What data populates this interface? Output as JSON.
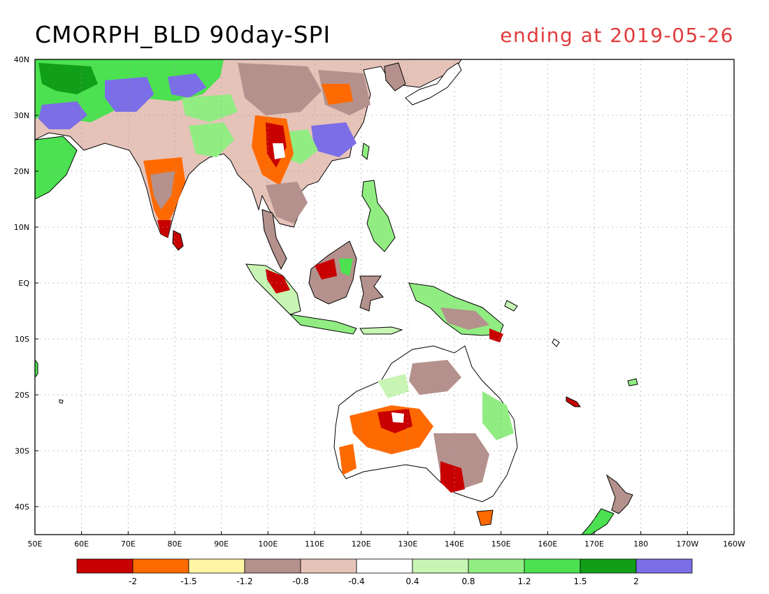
{
  "title": "CMORPH_BLD 90day-SPI",
  "subtitle": "ending at 2019-05-26",
  "map": {
    "lon_range": [
      50,
      200
    ],
    "lat_range": [
      -45,
      40
    ],
    "lon_ticks": [
      {
        "value": 50,
        "label": "50E"
      },
      {
        "value": 60,
        "label": "60E"
      },
      {
        "value": 70,
        "label": "70E"
      },
      {
        "value": 80,
        "label": "80E"
      },
      {
        "value": 90,
        "label": "90E"
      },
      {
        "value": 100,
        "label": "100E"
      },
      {
        "value": 110,
        "label": "110E"
      },
      {
        "value": 120,
        "label": "120E"
      },
      {
        "value": 130,
        "label": "130E"
      },
      {
        "value": 140,
        "label": "140E"
      },
      {
        "value": 150,
        "label": "150E"
      },
      {
        "value": 160,
        "label": "160E"
      },
      {
        "value": 170,
        "label": "170E"
      },
      {
        "value": 180,
        "label": "180"
      },
      {
        "value": 190,
        "label": "170W"
      },
      {
        "value": 200,
        "label": "160W"
      }
    ],
    "lat_ticks": [
      {
        "value": 40,
        "label": "40N"
      },
      {
        "value": 30,
        "label": "30N"
      },
      {
        "value": 20,
        "label": "20N"
      },
      {
        "value": 10,
        "label": "10N"
      },
      {
        "value": 0,
        "label": "EQ"
      },
      {
        "value": -10,
        "label": "10S"
      },
      {
        "value": -20,
        "label": "20S"
      },
      {
        "value": -30,
        "label": "30S"
      },
      {
        "value": -40,
        "label": "40S"
      }
    ],
    "grid": true,
    "background": "#ffffff"
  },
  "colorbar": {
    "colors": [
      "#c80000",
      "#ff6a00",
      "#fff5a5",
      "#b4918c",
      "#e6c3b9",
      "#ffffff",
      "#c8f5b4",
      "#91ed82",
      "#4be150",
      "#119f19",
      "#7b6ee6"
    ],
    "labels": [
      "-2",
      "-1.5",
      "-1.2",
      "-0.8",
      "-0.4",
      "0.4",
      "0.8",
      "1.2",
      "1.5",
      "2"
    ]
  }
}
